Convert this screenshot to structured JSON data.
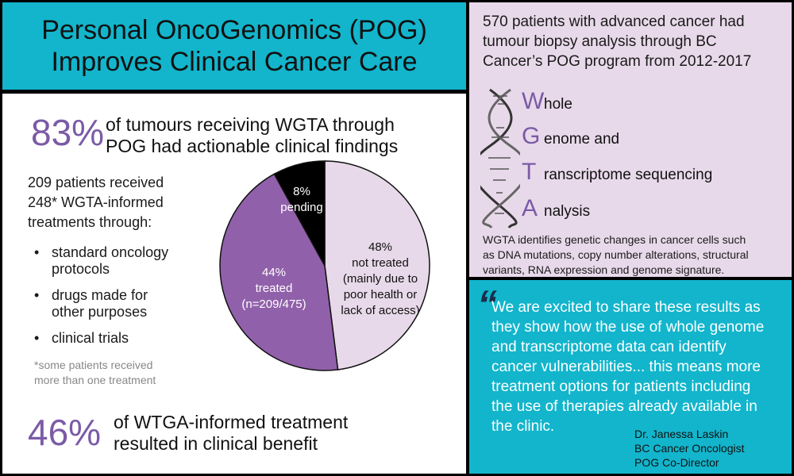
{
  "title": {
    "line1": "Personal OncoGenomics (POG)",
    "line2": "Improves Clinical Cancer Care"
  },
  "stat1": {
    "value": "83%",
    "line1": "of tumours receiving WGTA through",
    "line2": "POG had actionable clinical findings"
  },
  "treatments": {
    "lines": [
      "209 patients received",
      "248*  WGTA-informed",
      "treatments through:"
    ],
    "bullets": [
      {
        "lines": [
          "standard oncology",
          "protocols"
        ]
      },
      {
        "lines": [
          "drugs made for",
          "other purposes"
        ]
      },
      {
        "lines": [
          "clinical trials"
        ]
      }
    ],
    "footnote": [
      "*some patients received",
      "more than one treatment"
    ]
  },
  "stat2": {
    "value": "46%",
    "line1": "of  WTGA-informed treatment",
    "line2": "resulted in clinical benefit"
  },
  "chart_data": {
    "type": "pie",
    "slices": [
      {
        "value": 48,
        "label_lines": [
          "48%",
          "not treated",
          "(mainly due to",
          "poor health or",
          "lack of access)"
        ],
        "color": "#e8d9ea",
        "text_color": "#111111"
      },
      {
        "value": 44,
        "label_lines": [
          "44%",
          "treated",
          "(n=209/475)"
        ],
        "color": "#9160aa",
        "text_color": "#ffffff"
      },
      {
        "value": 8,
        "label_lines": [
          "8%",
          "pending"
        ],
        "color": "#000000",
        "text_color": "#ffffff"
      }
    ]
  },
  "right_top": {
    "intro": [
      "570 patients with advanced cancer had",
      "tumour biopsy analysis through BC",
      "Cancer’s POG program from 2012-2017"
    ],
    "acronym": [
      {
        "letter": "W",
        "rest": "hole"
      },
      {
        "letter": "G",
        "rest": "enome and"
      },
      {
        "letter": "T",
        "rest": "ranscriptome sequencing"
      },
      {
        "letter": "A",
        "rest": "nalysis"
      }
    ],
    "description": [
      "WGTA identifies genetic changes in cancer cells such",
      "as DNA mutations, copy number alterations, structural",
      "variants, RNA expression and genome signature."
    ]
  },
  "quote": {
    "mark": "“",
    "lines": [
      "We are excited to share these results as",
      "they show how the use of whole genome",
      "and transcriptome data can identify",
      "cancer vulnerabilities... this means more",
      "treatment options for patients including",
      "the use of therapies already available in",
      "the clinic."
    ],
    "credit": [
      "Dr. Janessa Laskin",
      "BC Cancer Oncologist",
      "POG Co-Director"
    ]
  },
  "colors": {
    "teal": "#12b5cc",
    "purple": "#7b5aa6",
    "lavender": "#e8d9ea",
    "pie_purple": "#9160aa"
  },
  "icons": {
    "dna": "dna-helix-icon"
  }
}
